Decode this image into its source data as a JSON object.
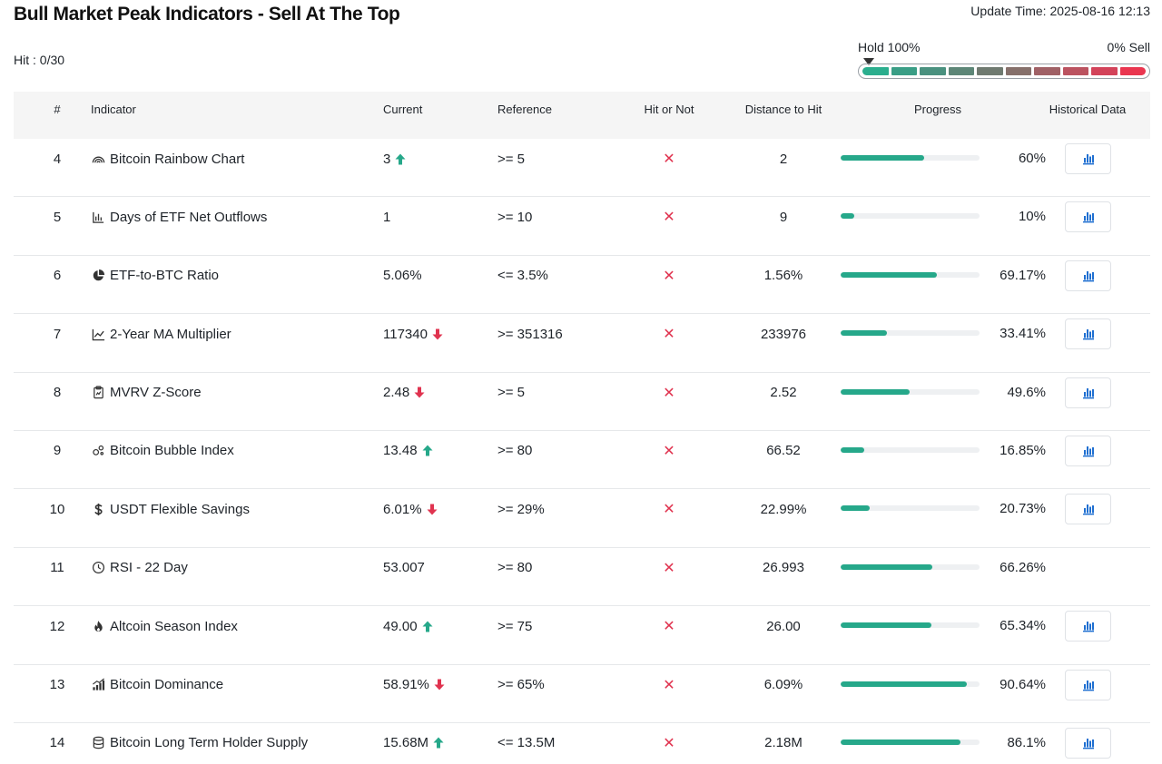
{
  "header": {
    "title": "Bull Market Peak Indicators - Sell At The Top",
    "update_time": "Update Time: 2025-08-16 12:13",
    "hit_count": "Hit : 0/30"
  },
  "meter": {
    "left_label": "Hold 100%",
    "right_label": "0% Sell",
    "level_percent": 0,
    "segment_colors": [
      "#2bae8e",
      "#3a9e86",
      "#4a917f",
      "#5d8677",
      "#6f7a70",
      "#86706b",
      "#a06166",
      "#bb5360",
      "#d3435a",
      "#ea3650"
    ]
  },
  "columns": {
    "num": "#",
    "indicator": "Indicator",
    "current": "Current",
    "reference": "Reference",
    "hit": "Hit or Not",
    "distance": "Distance to Hit",
    "progress": "Progress",
    "historical": "Historical Data"
  },
  "colors": {
    "up": "#26a88a",
    "down": "#e0334f",
    "hit_no": "#e0334f",
    "progress": "#26a88a",
    "chart_button": "#1f6fd1"
  },
  "rows": [
    {
      "num": "4",
      "icon": "rainbow-icon",
      "name": "Bitcoin Rainbow Chart",
      "current": "3",
      "trend": "up",
      "reference": ">= 5",
      "hit": "✕",
      "distance": "2",
      "progress": 60,
      "progress_label": "60%",
      "has_history": true
    },
    {
      "num": "5",
      "icon": "bar-chart-icon",
      "name": "Days of ETF Net Outflows",
      "current": "1",
      "trend": "none",
      "reference": ">= 10",
      "hit": "✕",
      "distance": "9",
      "progress": 10,
      "progress_label": "10%",
      "has_history": true
    },
    {
      "num": "6",
      "icon": "pie-chart-icon",
      "name": "ETF-to-BTC Ratio",
      "current": "5.06%",
      "trend": "none",
      "reference": "<= 3.5%",
      "hit": "✕",
      "distance": "1.56%",
      "progress": 69.17,
      "progress_label": "69.17%",
      "has_history": true
    },
    {
      "num": "7",
      "icon": "line-chart-icon",
      "name": "2-Year MA Multiplier",
      "current": "117340",
      "trend": "down",
      "reference": ">= 351316",
      "hit": "✕",
      "distance": "233976",
      "progress": 33.41,
      "progress_label": "33.41%",
      "has_history": true
    },
    {
      "num": "8",
      "icon": "clipboard-icon",
      "name": "MVRV Z-Score",
      "current": "2.48",
      "trend": "down",
      "reference": ">= 5",
      "hit": "✕",
      "distance": "2.52",
      "progress": 49.6,
      "progress_label": "49.6%",
      "has_history": true
    },
    {
      "num": "9",
      "icon": "bubbles-icon",
      "name": "Bitcoin Bubble Index",
      "current": "13.48",
      "trend": "up",
      "reference": ">= 80",
      "hit": "✕",
      "distance": "66.52",
      "progress": 16.85,
      "progress_label": "16.85%",
      "has_history": true
    },
    {
      "num": "10",
      "icon": "dollar-icon",
      "name": "USDT Flexible Savings",
      "current": "6.01%",
      "trend": "down",
      "reference": ">= 29%",
      "hit": "✕",
      "distance": "22.99%",
      "progress": 20.73,
      "progress_label": "20.73%",
      "has_history": true
    },
    {
      "num": "11",
      "icon": "clock-icon",
      "name": "RSI - 22 Day",
      "current": "53.007",
      "trend": "none",
      "reference": ">= 80",
      "hit": "✕",
      "distance": "26.993",
      "progress": 66.26,
      "progress_label": "66.26%",
      "has_history": false
    },
    {
      "num": "12",
      "icon": "flame-icon",
      "name": "Altcoin Season Index",
      "current": "49.00",
      "trend": "up",
      "reference": ">= 75",
      "hit": "✕",
      "distance": "26.00",
      "progress": 65.34,
      "progress_label": "65.34%",
      "has_history": true
    },
    {
      "num": "13",
      "icon": "signal-chart-icon",
      "name": "Bitcoin Dominance",
      "current": "58.91%",
      "trend": "down",
      "reference": ">= 65%",
      "hit": "✕",
      "distance": "6.09%",
      "progress": 90.64,
      "progress_label": "90.64%",
      "has_history": true
    },
    {
      "num": "14",
      "icon": "database-icon",
      "name": "Bitcoin Long Term Holder Supply",
      "current": "15.68M",
      "trend": "up",
      "reference": "<= 13.5M",
      "hit": "✕",
      "distance": "2.18M",
      "progress": 86.1,
      "progress_label": "86.1%",
      "has_history": true
    }
  ]
}
